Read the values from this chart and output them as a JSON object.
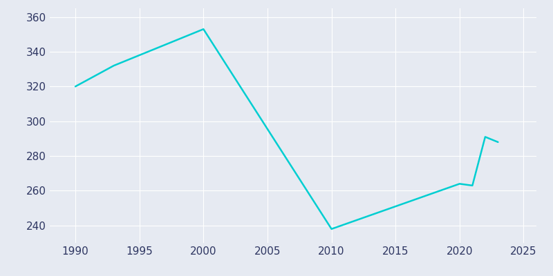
{
  "years": [
    1990,
    1993,
    2000,
    2010,
    2020,
    2021,
    2022,
    2023
  ],
  "population": [
    320,
    332,
    353,
    238,
    264,
    263,
    291,
    288
  ],
  "line_color": "#00CED1",
  "bg_color": "#E6EAF2",
  "grid_color": "#ffffff",
  "tick_color": "#2d3561",
  "xlim": [
    1988,
    2026
  ],
  "ylim": [
    230,
    365
  ],
  "xticks": [
    1990,
    1995,
    2000,
    2005,
    2010,
    2015,
    2020,
    2025
  ],
  "yticks": [
    240,
    260,
    280,
    300,
    320,
    340,
    360
  ],
  "linewidth": 1.8,
  "tick_fontsize": 11
}
